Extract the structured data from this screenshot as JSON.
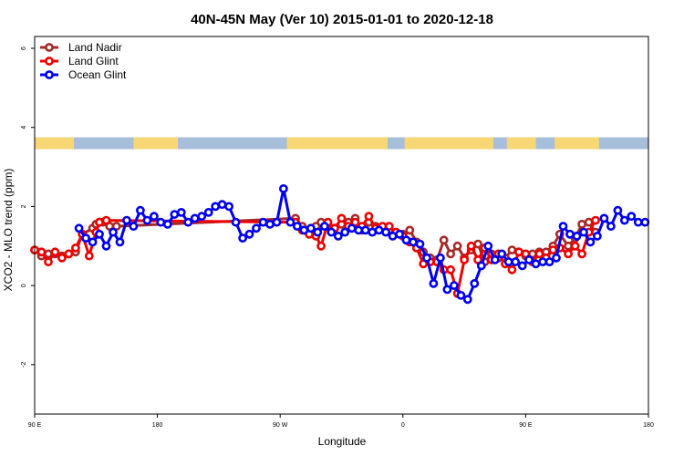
{
  "chart_data": {
    "type": "line",
    "title": "40N-45N May (Ver 10)   2015-01-01 to 2020-12-18",
    "xlabel": "Longitude",
    "ylabel": "XCO2 - MLO trend (ppm)",
    "xlim": [
      90,
      450
    ],
    "ylim": [
      -3.25,
      6.3
    ],
    "x_ticks": [
      {
        "value": 90,
        "label": "90 E"
      },
      {
        "value": 162,
        "label": "180"
      },
      {
        "value": 234,
        "label": "90 W"
      },
      {
        "value": 306,
        "label": "0"
      },
      {
        "value": 378,
        "label": "90 E"
      },
      {
        "value": 450,
        "label": "180"
      }
    ],
    "y_ticks": [
      {
        "value": -2,
        "label": "-2"
      },
      {
        "value": 0,
        "label": "0"
      },
      {
        "value": 2,
        "label": "2"
      },
      {
        "value": 4,
        "label": "4"
      },
      {
        "value": 6,
        "label": "6"
      }
    ],
    "legend_position": "top-left",
    "land_ocean_bar": {
      "y_range": [
        3.45,
        3.75
      ],
      "land_color": "#F7D774",
      "ocean_color": "#A7BEDB",
      "land_segments": [
        [
          90,
          113
        ],
        [
          148,
          174
        ],
        [
          238,
          297
        ],
        [
          307,
          359
        ],
        [
          367,
          384
        ],
        [
          395,
          421
        ]
      ]
    },
    "series": [
      {
        "name": "Land Nadir",
        "color": "#A52A2A",
        "x": [
          90,
          94,
          98,
          102,
          106,
          110,
          114,
          118,
          124,
          126,
          128,
          130,
          134,
          138,
          243,
          247,
          251,
          255,
          258,
          262,
          266,
          270,
          274,
          278,
          282,
          286,
          290,
          294,
          298,
          302,
          306,
          310,
          314,
          318,
          322,
          326,
          330,
          334,
          338,
          342,
          346,
          350,
          354,
          358,
          362,
          366,
          370,
          374,
          378,
          382,
          386,
          390,
          394,
          398,
          403,
          407,
          411,
          415,
          419
        ],
        "y": [
          0.9,
          0.75,
          0.8,
          0.8,
          0.75,
          0.8,
          0.85,
          1.3,
          1.45,
          1.55,
          1.6,
          1.6,
          1.5,
          1.5,
          1.7,
          1.5,
          1.4,
          1.5,
          1.6,
          1.55,
          1.45,
          1.55,
          1.6,
          1.7,
          1.4,
          1.6,
          1.5,
          1.45,
          1.4,
          1.35,
          1.3,
          1.4,
          1.1,
          0.85,
          0.7,
          0.65,
          1.15,
          0.8,
          1.0,
          0.7,
          0.9,
          1.05,
          0.6,
          0.8,
          0.7,
          0.7,
          0.9,
          0.85,
          0.75,
          0.8,
          0.85,
          0.85,
          1.0,
          1.3,
          1.0,
          1.2,
          1.55,
          1.6,
          1.35
        ],
        "marker": "o"
      },
      {
        "name": "Land Glint",
        "color": "#EE0000",
        "x": [
          90,
          94,
          98,
          102,
          106,
          110,
          114,
          118,
          122,
          126,
          128,
          132,
          243,
          247,
          251,
          255,
          258,
          262,
          266,
          270,
          274,
          278,
          282,
          286,
          290,
          294,
          298,
          302,
          306,
          310,
          314,
          318,
          322,
          326,
          330,
          334,
          338,
          342,
          346,
          350,
          354,
          358,
          362,
          366,
          370,
          374,
          378,
          382,
          386,
          390,
          394,
          398,
          403,
          407,
          411,
          415,
          419
        ],
        "y": [
          0.9,
          0.85,
          0.6,
          0.85,
          0.7,
          0.8,
          0.95,
          1.3,
          0.75,
          1.35,
          1.6,
          1.65,
          1.6,
          1.4,
          1.3,
          1.25,
          1.0,
          1.6,
          1.45,
          1.7,
          1.5,
          1.6,
          1.5,
          1.75,
          1.45,
          1.5,
          1.5,
          1.35,
          1.25,
          1.1,
          0.95,
          0.55,
          0.6,
          0.6,
          0.4,
          0.4,
          -0.2,
          0.65,
          1.0,
          0.65,
          0.95,
          0.65,
          0.8,
          0.55,
          0.4,
          0.85,
          0.8,
          0.6,
          0.8,
          0.7,
          0.9,
          0.95,
          0.8,
          1.0,
          0.8,
          1.35,
          1.65
        ],
        "marker": "o"
      },
      {
        "name": "Ocean Glint",
        "color": "#0000EE",
        "x": [
          116,
          120,
          124,
          128,
          132,
          136,
          140,
          144,
          148,
          152,
          156,
          160,
          164,
          168,
          172,
          176,
          180,
          184,
          188,
          192,
          196,
          200,
          204,
          208,
          212,
          216,
          220,
          224,
          228,
          232,
          236,
          240,
          244,
          248,
          252,
          256,
          260,
          264,
          268,
          272,
          276,
          280,
          284,
          288,
          292,
          296,
          300,
          304,
          308,
          312,
          316,
          320,
          324,
          328,
          332,
          336,
          340,
          344,
          348,
          352,
          356,
          360,
          364,
          368,
          372,
          376,
          380,
          384,
          388,
          392,
          396,
          400,
          404,
          408,
          412,
          416,
          420,
          424,
          428,
          432,
          436,
          440,
          444,
          448
        ],
        "y": [
          1.45,
          1.2,
          1.1,
          1.3,
          1.0,
          1.35,
          1.1,
          1.65,
          1.5,
          1.9,
          1.65,
          1.75,
          1.6,
          1.55,
          1.8,
          1.85,
          1.6,
          1.7,
          1.75,
          1.85,
          2.0,
          2.05,
          2.0,
          1.6,
          1.2,
          1.3,
          1.45,
          1.6,
          1.55,
          1.6,
          2.45,
          1.6,
          1.5,
          1.4,
          1.45,
          1.35,
          1.5,
          1.35,
          1.25,
          1.35,
          1.45,
          1.4,
          1.4,
          1.35,
          1.4,
          1.35,
          1.25,
          1.3,
          1.15,
          1.1,
          1.05,
          0.7,
          0.05,
          0.7,
          -0.1,
          0.0,
          -0.25,
          -0.35,
          0.05,
          0.5,
          1.0,
          0.65,
          0.8,
          0.6,
          0.6,
          0.5,
          0.65,
          0.55,
          0.6,
          0.6,
          0.7,
          1.5,
          1.3,
          1.25,
          1.35,
          1.1,
          1.25,
          1.7,
          1.5,
          1.9,
          1.65,
          1.75,
          1.6,
          1.6
        ],
        "marker": "o"
      }
    ]
  }
}
